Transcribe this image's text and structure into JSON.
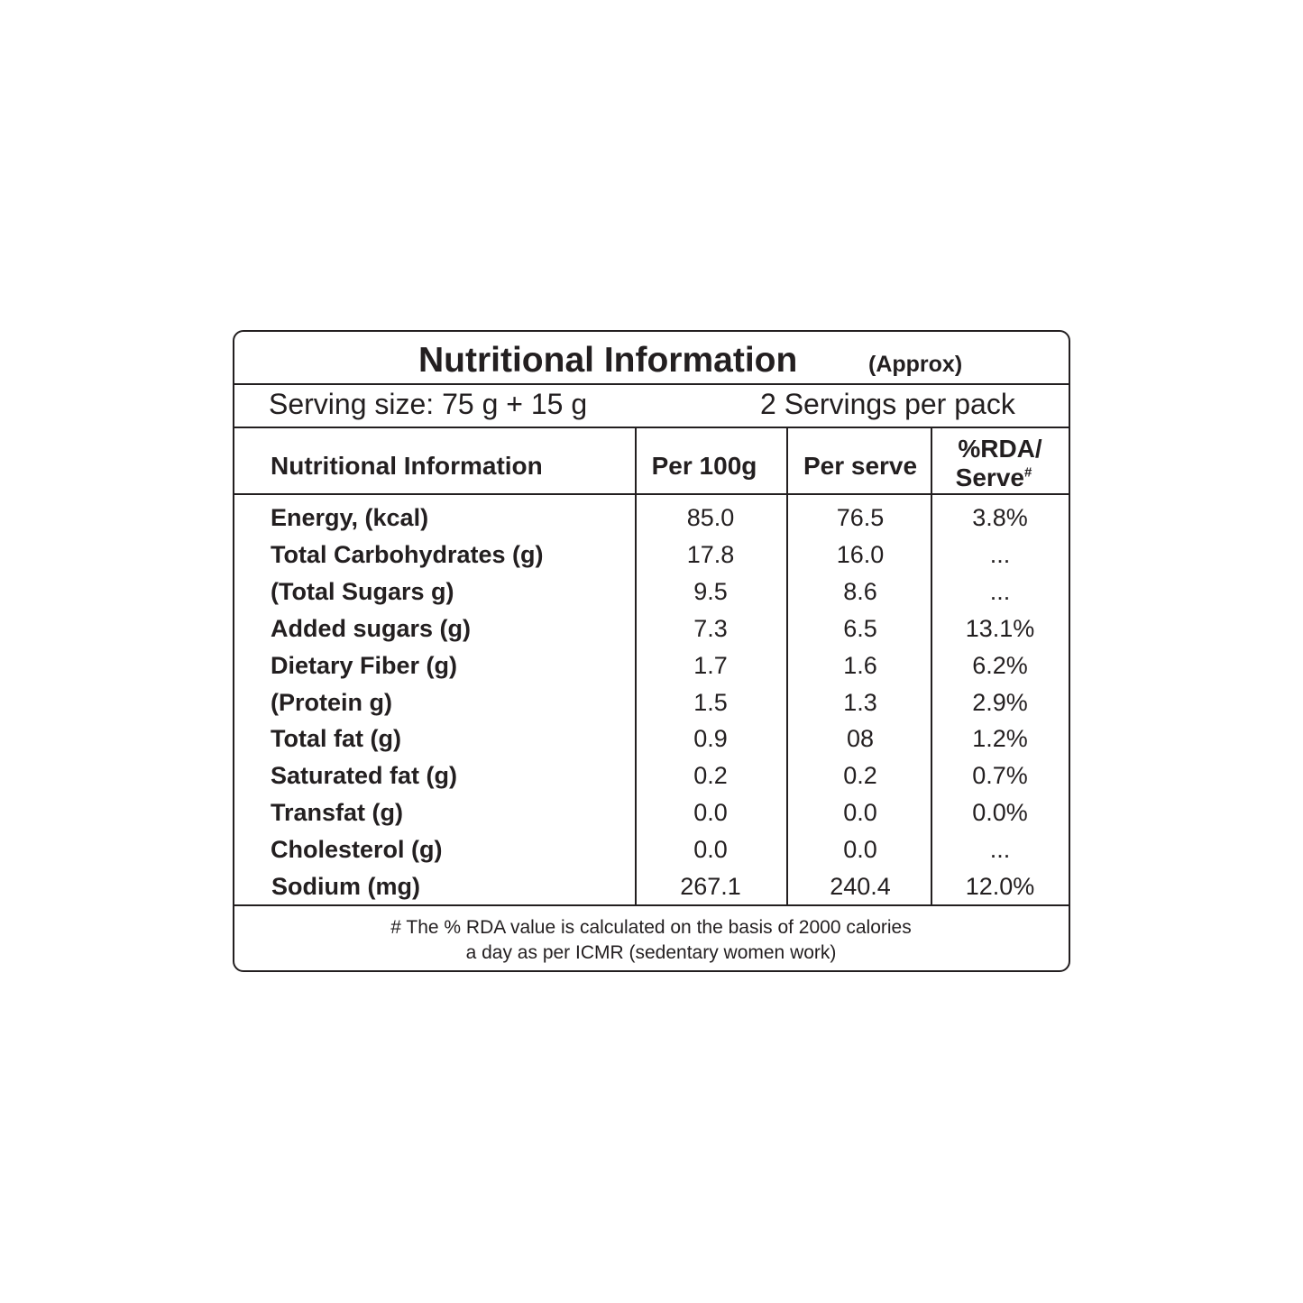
{
  "title": "Nutritional Information",
  "title_note": "(Approx)",
  "serving": {
    "size": "Serving size: 75 g + 15 g",
    "per_pack": "2 Servings per pack"
  },
  "table": {
    "header": [
      "Nutritional Information",
      "Per 100g",
      "Per serve"
    ],
    "rda_header": {
      "lines": [
        "%RDA/",
        "Serve"
      ],
      "sup": "#"
    },
    "rows": [
      [
        "Energy, (kcal)",
        "85.0",
        "76.5",
        "3.8%"
      ],
      [
        "Total Carbohydrates (g)",
        "17.8",
        "16.0",
        "..."
      ],
      [
        "(Total Sugars g)",
        "9.5",
        "8.6",
        "..."
      ],
      [
        "Added sugars (g)",
        "7.3",
        "6.5",
        "13.1%"
      ],
      [
        "Dietary Fiber (g)",
        "1.7",
        "1.6",
        "6.2%"
      ],
      [
        "(Protein g)",
        "1.5",
        "1.3",
        "2.9%"
      ],
      [
        "Total fat (g)",
        "0.9",
        "08",
        "1.2%"
      ],
      [
        "Saturated fat (g)",
        "0.2",
        "0.2",
        "0.7%"
      ],
      [
        "Transfat (g)",
        "0.0",
        "0.0",
        "0.0%"
      ],
      [
        "Cholesterol (g)",
        "0.0",
        "0.0",
        "..."
      ],
      [
        "Sodium (mg)",
        "267.1",
        "240.4",
        "12.0%"
      ]
    ]
  },
  "footnote": [
    "# The % RDA value is calculated on the basis of 2000 calories",
    "a day as per ICMR (sedentary women work)"
  ]
}
